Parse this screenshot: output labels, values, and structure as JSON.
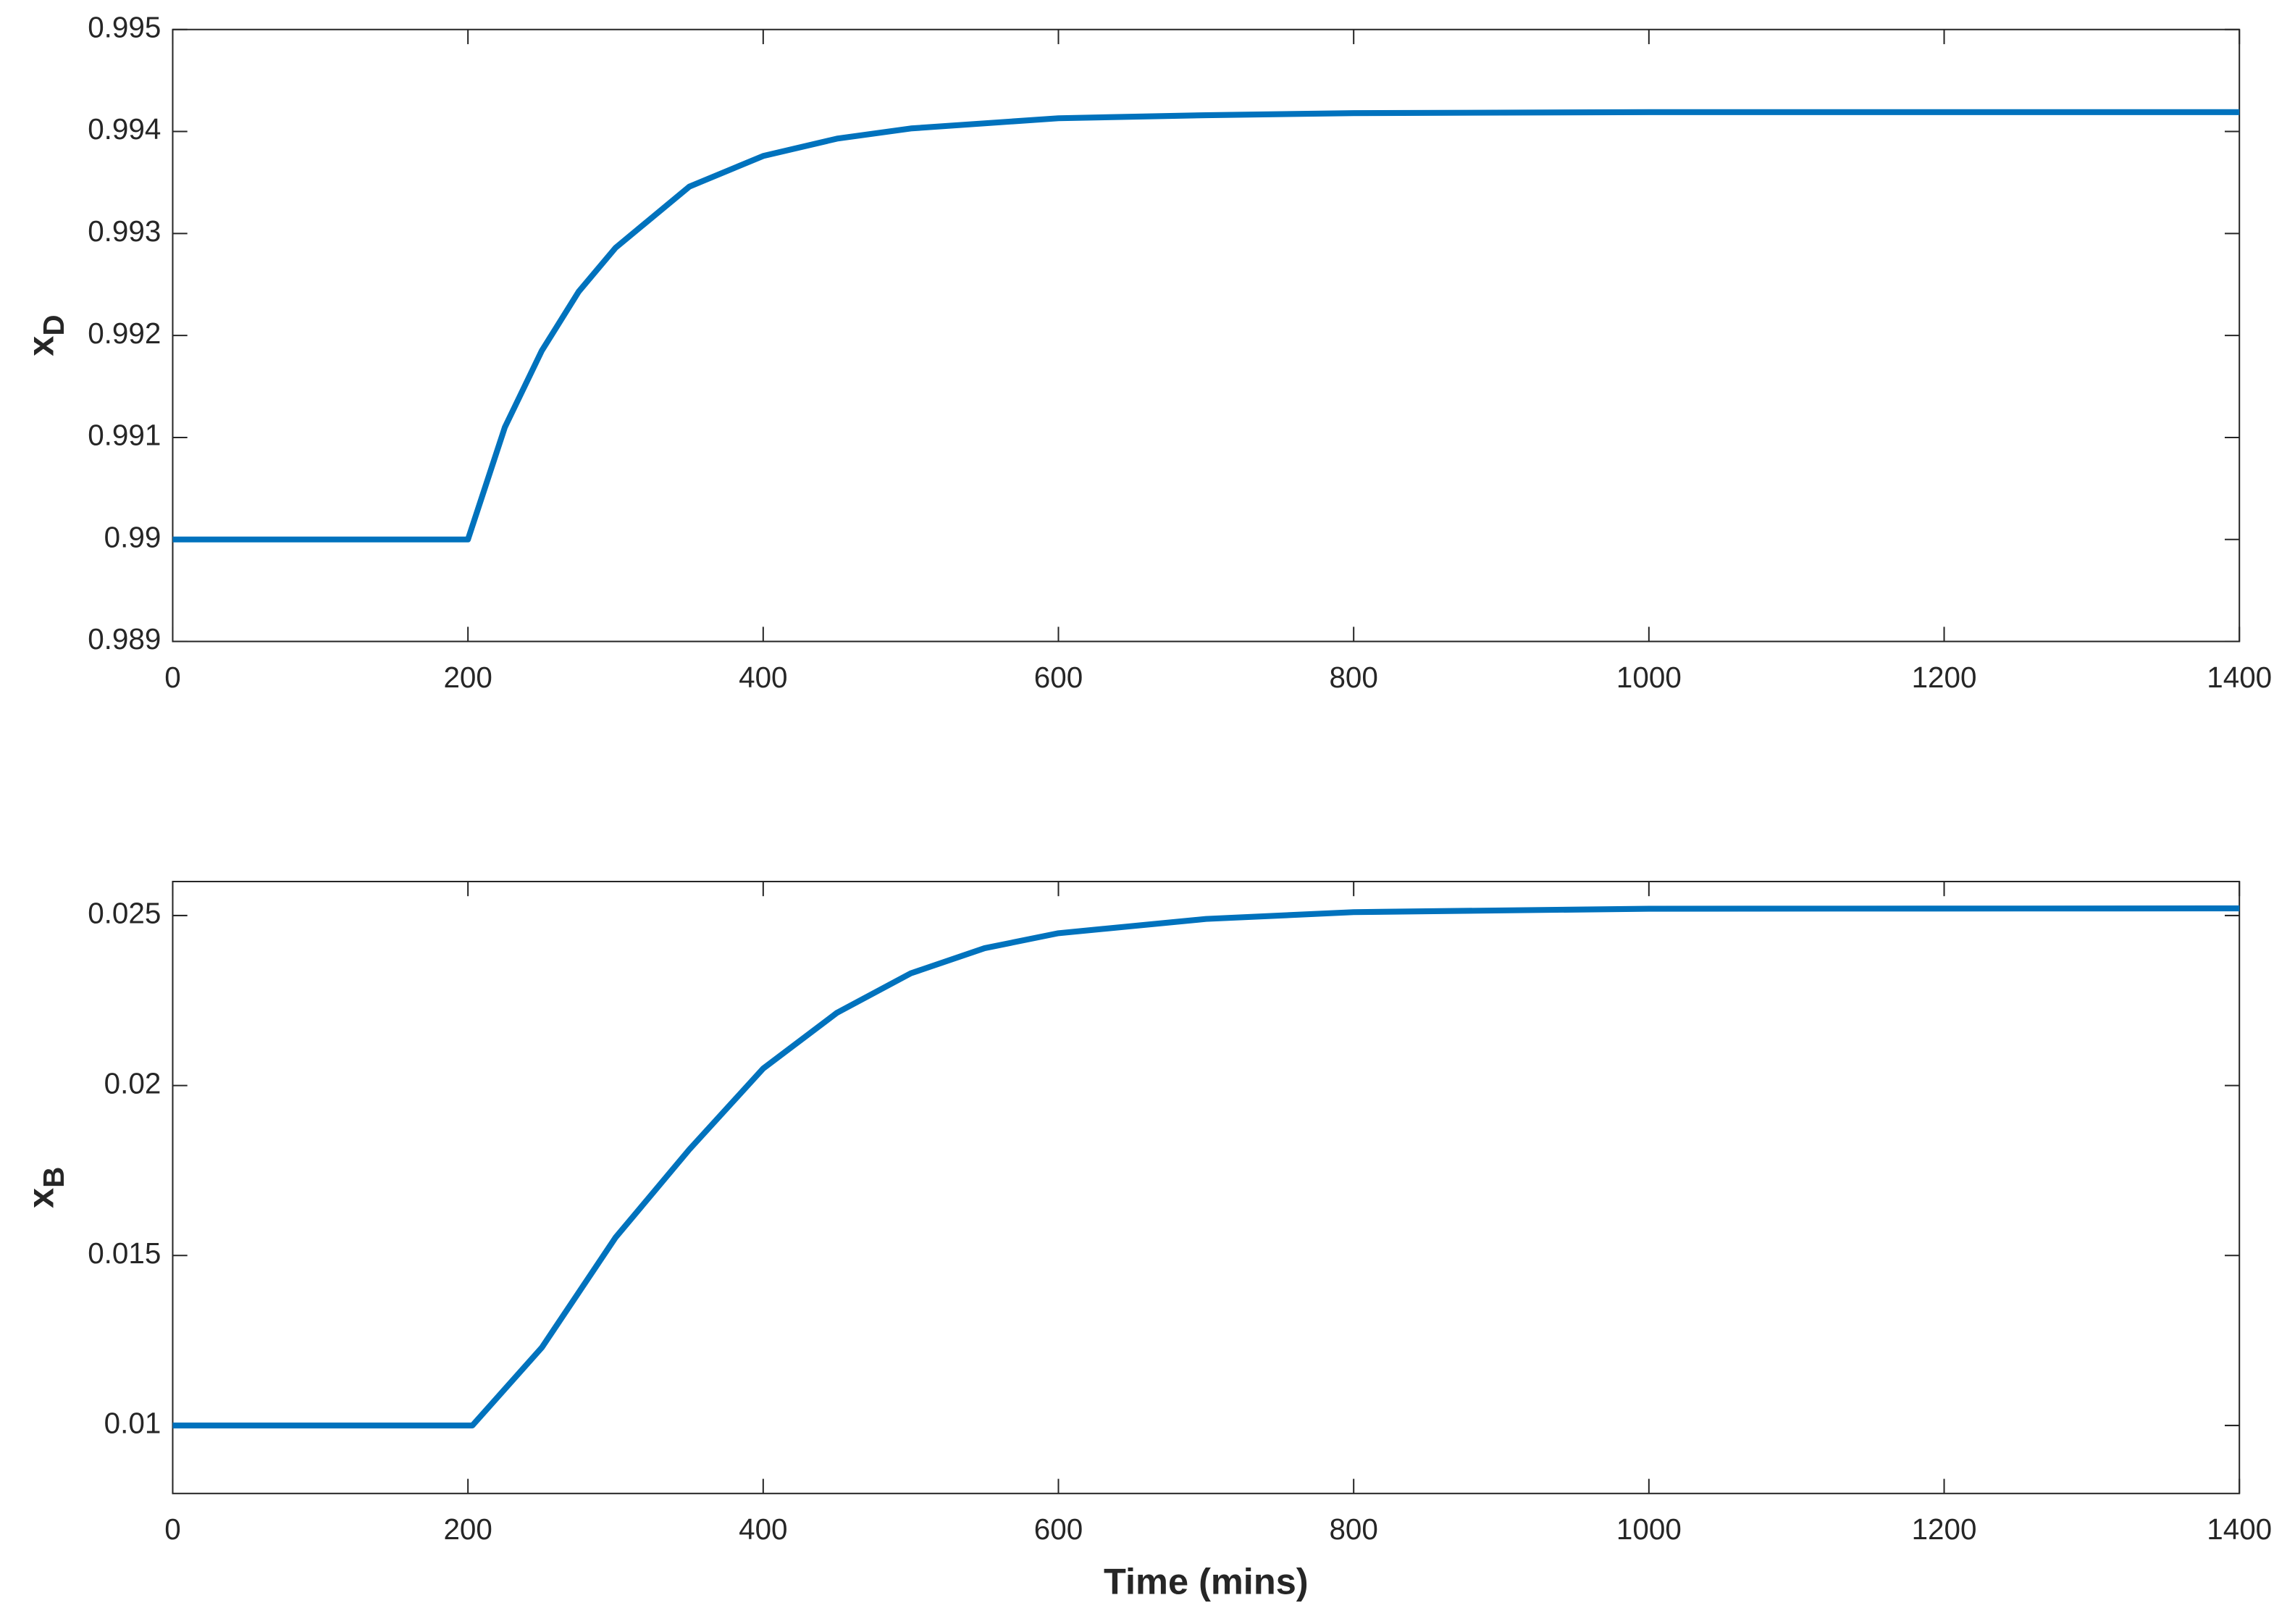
{
  "chart_data": [
    {
      "type": "line",
      "ylabel": "x",
      "ylabel_subscript": "D",
      "xlim": [
        0,
        1400
      ],
      "xticks": [
        0,
        200,
        400,
        600,
        800,
        1000,
        1200,
        1400
      ],
      "ylim": [
        0.989,
        0.995
      ],
      "yticks": [
        0.989,
        0.99,
        0.991,
        0.992,
        0.993,
        0.994,
        0.995
      ],
      "series": [
        {
          "color": "#0072bd",
          "x": [
            0,
            200,
            225,
            250,
            275,
            300,
            350,
            400,
            450,
            500,
            600,
            700,
            800,
            1000,
            1400
          ],
          "values": [
            0.99,
            0.99,
            0.9911,
            0.99185,
            0.99243,
            0.99286,
            0.99346,
            0.99376,
            0.99393,
            0.99403,
            0.99413,
            0.99416,
            0.99418,
            0.99419,
            0.99419
          ]
        }
      ]
    },
    {
      "type": "line",
      "ylabel": "x",
      "ylabel_subscript": "B",
      "xlabel": "Time (mins)",
      "xlim": [
        0,
        1400
      ],
      "xticks": [
        0,
        200,
        400,
        600,
        800,
        1000,
        1200,
        1400
      ],
      "ylim": [
        0.008,
        0.026
      ],
      "yticks": [
        0.01,
        0.015,
        0.02,
        0.025
      ],
      "series": [
        {
          "color": "#0072bd",
          "x": [
            0,
            203,
            250,
            300,
            350,
            400,
            450,
            500,
            550,
            600,
            700,
            800,
            1000,
            1400
          ],
          "values": [
            0.01,
            0.01,
            0.01229,
            0.01553,
            0.01812,
            0.0205,
            0.02214,
            0.0233,
            0.02404,
            0.02448,
            0.0249,
            0.0251,
            0.0252,
            0.02521
          ]
        }
      ]
    }
  ]
}
